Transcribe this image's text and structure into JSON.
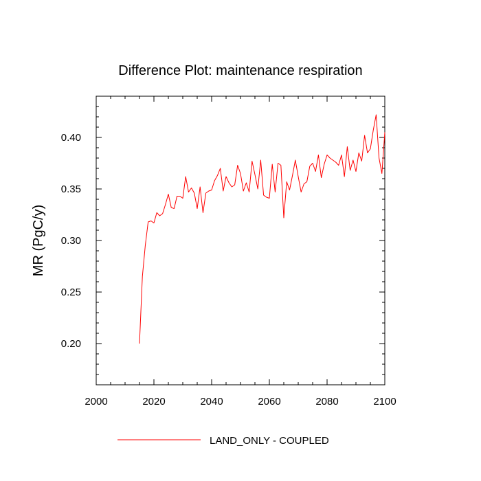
{
  "chart_data": {
    "type": "line",
    "title": "Difference Plot: maintenance respiration",
    "xlabel": "",
    "ylabel": "MR  (PgC/y)",
    "xlim": [
      2000,
      2100
    ],
    "ylim": [
      0.16,
      0.44
    ],
    "x_ticks": [
      2000,
      2020,
      2040,
      2060,
      2080,
      2100
    ],
    "x_tick_labels": [
      "2000",
      "2020",
      "2040",
      "2060",
      "2080",
      "2100"
    ],
    "y_ticks": [
      0.2,
      0.25,
      0.3,
      0.35,
      0.4
    ],
    "y_tick_labels": [
      "0.20",
      "0.25",
      "0.30",
      "0.35",
      "0.40"
    ],
    "legend_position": "bottom",
    "grid": false,
    "series": [
      {
        "name": "LAND_ONLY - COUPLED",
        "color": "#ff0000",
        "x": [
          2015,
          2016,
          2017,
          2018,
          2019,
          2020,
          2021,
          2022,
          2023,
          2024,
          2025,
          2026,
          2027,
          2028,
          2029,
          2030,
          2031,
          2032,
          2033,
          2034,
          2035,
          2036,
          2037,
          2038,
          2039,
          2040,
          2041,
          2042,
          2043,
          2044,
          2045,
          2046,
          2047,
          2048,
          2049,
          2050,
          2051,
          2052,
          2053,
          2054,
          2055,
          2056,
          2057,
          2058,
          2059,
          2060,
          2061,
          2062,
          2063,
          2064,
          2065,
          2066,
          2067,
          2068,
          2069,
          2070,
          2071,
          2072,
          2073,
          2074,
          2075,
          2076,
          2077,
          2078,
          2079,
          2080,
          2081,
          2082,
          2083,
          2084,
          2085,
          2086,
          2087,
          2088,
          2089,
          2090,
          2091,
          2092,
          2093,
          2094,
          2095,
          2096,
          2097,
          2098,
          2099,
          2100
        ],
        "y": [
          0.2,
          0.265,
          0.295,
          0.318,
          0.319,
          0.317,
          0.327,
          0.324,
          0.326,
          0.335,
          0.345,
          0.332,
          0.331,
          0.343,
          0.343,
          0.341,
          0.362,
          0.347,
          0.351,
          0.346,
          0.331,
          0.352,
          0.327,
          0.346,
          0.348,
          0.349,
          0.358,
          0.363,
          0.37,
          0.348,
          0.362,
          0.356,
          0.352,
          0.354,
          0.373,
          0.365,
          0.348,
          0.356,
          0.347,
          0.377,
          0.364,
          0.35,
          0.378,
          0.344,
          0.342,
          0.341,
          0.374,
          0.347,
          0.375,
          0.373,
          0.322,
          0.357,
          0.349,
          0.363,
          0.378,
          0.362,
          0.347,
          0.355,
          0.357,
          0.372,
          0.375,
          0.367,
          0.383,
          0.361,
          0.374,
          0.383,
          0.38,
          0.378,
          0.376,
          0.373,
          0.383,
          0.362,
          0.391,
          0.368,
          0.378,
          0.367,
          0.385,
          0.377,
          0.402,
          0.385,
          0.389,
          0.407,
          0.422,
          0.38,
          0.365,
          0.405
        ]
      }
    ]
  }
}
